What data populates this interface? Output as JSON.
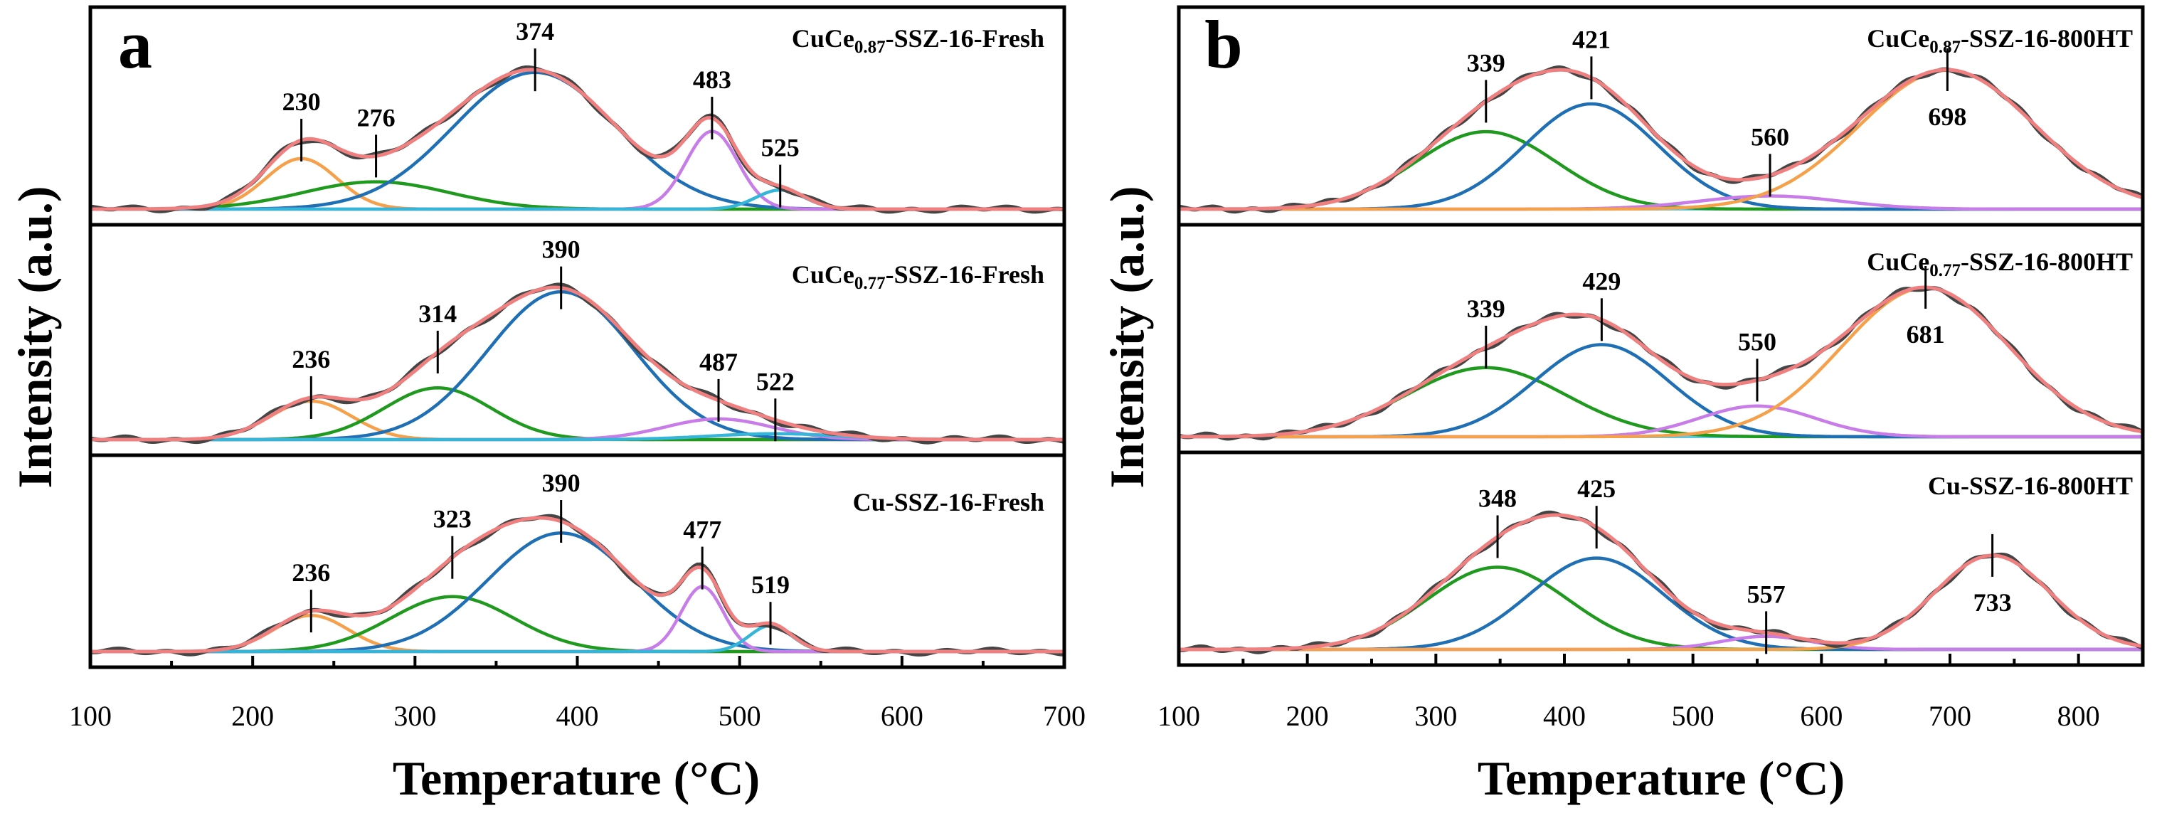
{
  "figure": {
    "panels": [
      {
        "letter": "a",
        "xlabel": "Temperature (°C)",
        "ylabel": "Intensity (a.u.)",
        "xlim": [
          100,
          700
        ],
        "xticks": [
          100,
          200,
          300,
          400,
          500,
          600,
          700
        ],
        "subplots": [
          {
            "base": "CuCe",
            "sub": "0.87",
            "suffix": "-SSZ-16-Fresh",
            "peaks_label": [
              "230",
              "276",
              "374",
              "483",
              "525"
            ]
          },
          {
            "base": "CuCe",
            "sub": "0.77",
            "suffix": "-SSZ-16-Fresh",
            "peaks_label": [
              "236",
              "314",
              "390",
              "487",
              "522"
            ]
          },
          {
            "base": "Cu-SSZ-16-Fresh",
            "sub": "",
            "suffix": "",
            "peaks_label": [
              "236",
              "323",
              "390",
              "477",
              "519"
            ]
          }
        ]
      },
      {
        "letter": "b",
        "xlabel": "Temperature (°C)",
        "ylabel": "Intensity (a.u.)",
        "xlim": [
          100,
          850
        ],
        "xticks": [
          100,
          200,
          300,
          400,
          500,
          600,
          700,
          800
        ],
        "subplots": [
          {
            "base": "CuCe",
            "sub": "0.87",
            "suffix": "-SSZ-16-800HT",
            "peaks_label": [
              "339",
              "421",
              "560",
              "698"
            ]
          },
          {
            "base": "CuCe",
            "sub": "0.77",
            "suffix": "-SSZ-16-800HT",
            "peaks_label": [
              "339",
              "429",
              "550",
              "681"
            ]
          },
          {
            "base": "Cu-SSZ-16-800HT",
            "sub": "",
            "suffix": "",
            "peaks_label": [
              "348",
              "425",
              "557",
              "733"
            ]
          }
        ]
      }
    ]
  },
  "chart_data": [
    {
      "type": "line",
      "title": "a",
      "xlabel": "Temperature (°C)",
      "ylabel": "Intensity (a.u.)",
      "xlim": [
        100,
        700
      ],
      "subplots": [
        {
          "label": "CuCe0.87-SSZ-16-Fresh",
          "peaks": [
            {
              "center": 230,
              "height": 0.37,
              "width": 22,
              "color": "#f5a04a",
              "label": "230"
            },
            {
              "center": 276,
              "height": 0.2,
              "width": 45,
              "color": "#1f9a1f",
              "label": "276"
            },
            {
              "center": 374,
              "height": 1.0,
              "width": 50,
              "color": "#1f6fb4",
              "label": "374"
            },
            {
              "center": 483,
              "height": 0.57,
              "width": 16,
              "color": "#c77ce8",
              "label": "483"
            },
            {
              "center": 525,
              "height": 0.14,
              "width": 15,
              "color": "#35b6d8",
              "label": "525"
            }
          ]
        },
        {
          "label": "CuCe0.77-SSZ-16-Fresh",
          "peaks": [
            {
              "center": 236,
              "height": 0.26,
              "width": 25,
              "color": "#f5a04a",
              "label": "236"
            },
            {
              "center": 314,
              "height": 0.35,
              "width": 33,
              "color": "#1f9a1f",
              "label": "314"
            },
            {
              "center": 390,
              "height": 1.0,
              "width": 45,
              "color": "#1f6fb4",
              "label": "390"
            },
            {
              "center": 487,
              "height": 0.14,
              "width": 33,
              "color": "#c77ce8",
              "label": "487"
            },
            {
              "center": 522,
              "height": 0.04,
              "width": 40,
              "color": "#35b6d8",
              "label": "522"
            }
          ]
        },
        {
          "label": "Cu-SSZ-16-Fresh",
          "peaks": [
            {
              "center": 236,
              "height": 0.25,
              "width": 23,
              "color": "#f5a04a",
              "label": "236"
            },
            {
              "center": 323,
              "height": 0.38,
              "width": 38,
              "color": "#1f9a1f",
              "label": "323"
            },
            {
              "center": 390,
              "height": 0.82,
              "width": 45,
              "color": "#1f6fb4",
              "label": "390"
            },
            {
              "center": 477,
              "height": 0.45,
              "width": 13,
              "color": "#c77ce8",
              "label": "477"
            },
            {
              "center": 519,
              "height": 0.18,
              "width": 13,
              "color": "#35b6d8",
              "label": "519"
            }
          ]
        }
      ]
    },
    {
      "type": "line",
      "title": "b",
      "xlabel": "Temperature (°C)",
      "ylabel": "Intensity (a.u.)",
      "xlim": [
        100,
        850
      ],
      "subplots": [
        {
          "label": "CuCe0.87-SSZ-16-800HT",
          "peaks": [
            {
              "center": 339,
              "height": 0.53,
              "width": 55,
              "color": "#1f9a1f",
              "label": "339"
            },
            {
              "center": 421,
              "height": 0.72,
              "width": 52,
              "color": "#1f6fb4",
              "label": "421"
            },
            {
              "center": 560,
              "height": 0.09,
              "width": 55,
              "color": "#c77ce8",
              "label": "560"
            },
            {
              "center": 698,
              "height": 0.95,
              "width": 68,
              "color": "#f5a04a",
              "label": "698"
            }
          ]
        },
        {
          "label": "CuCe0.77-SSZ-16-800HT",
          "peaks": [
            {
              "center": 339,
              "height": 0.45,
              "width": 62,
              "color": "#1f9a1f",
              "label": "339"
            },
            {
              "center": 429,
              "height": 0.6,
              "width": 52,
              "color": "#1f6fb4",
              "label": "429"
            },
            {
              "center": 550,
              "height": 0.2,
              "width": 45,
              "color": "#c77ce8",
              "label": "550"
            },
            {
              "center": 681,
              "height": 0.97,
              "width": 65,
              "color": "#f5a04a",
              "label": "681"
            }
          ]
        },
        {
          "label": "Cu-SSZ-16-800HT",
          "peaks": [
            {
              "center": 348,
              "height": 0.63,
              "width": 55,
              "color": "#1f9a1f",
              "label": "348"
            },
            {
              "center": 425,
              "height": 0.7,
              "width": 52,
              "color": "#1f6fb4",
              "label": "425"
            },
            {
              "center": 557,
              "height": 0.1,
              "width": 35,
              "color": "#c77ce8",
              "label": "557"
            },
            {
              "center": 733,
              "height": 0.72,
              "width": 45,
              "color": "#f5a04a",
              "label": "733"
            }
          ]
        }
      ]
    }
  ],
  "colors": {
    "fit": "#f08080",
    "raw": "#454545",
    "baseline": "#5bc8e8",
    "axes": "#000000"
  }
}
